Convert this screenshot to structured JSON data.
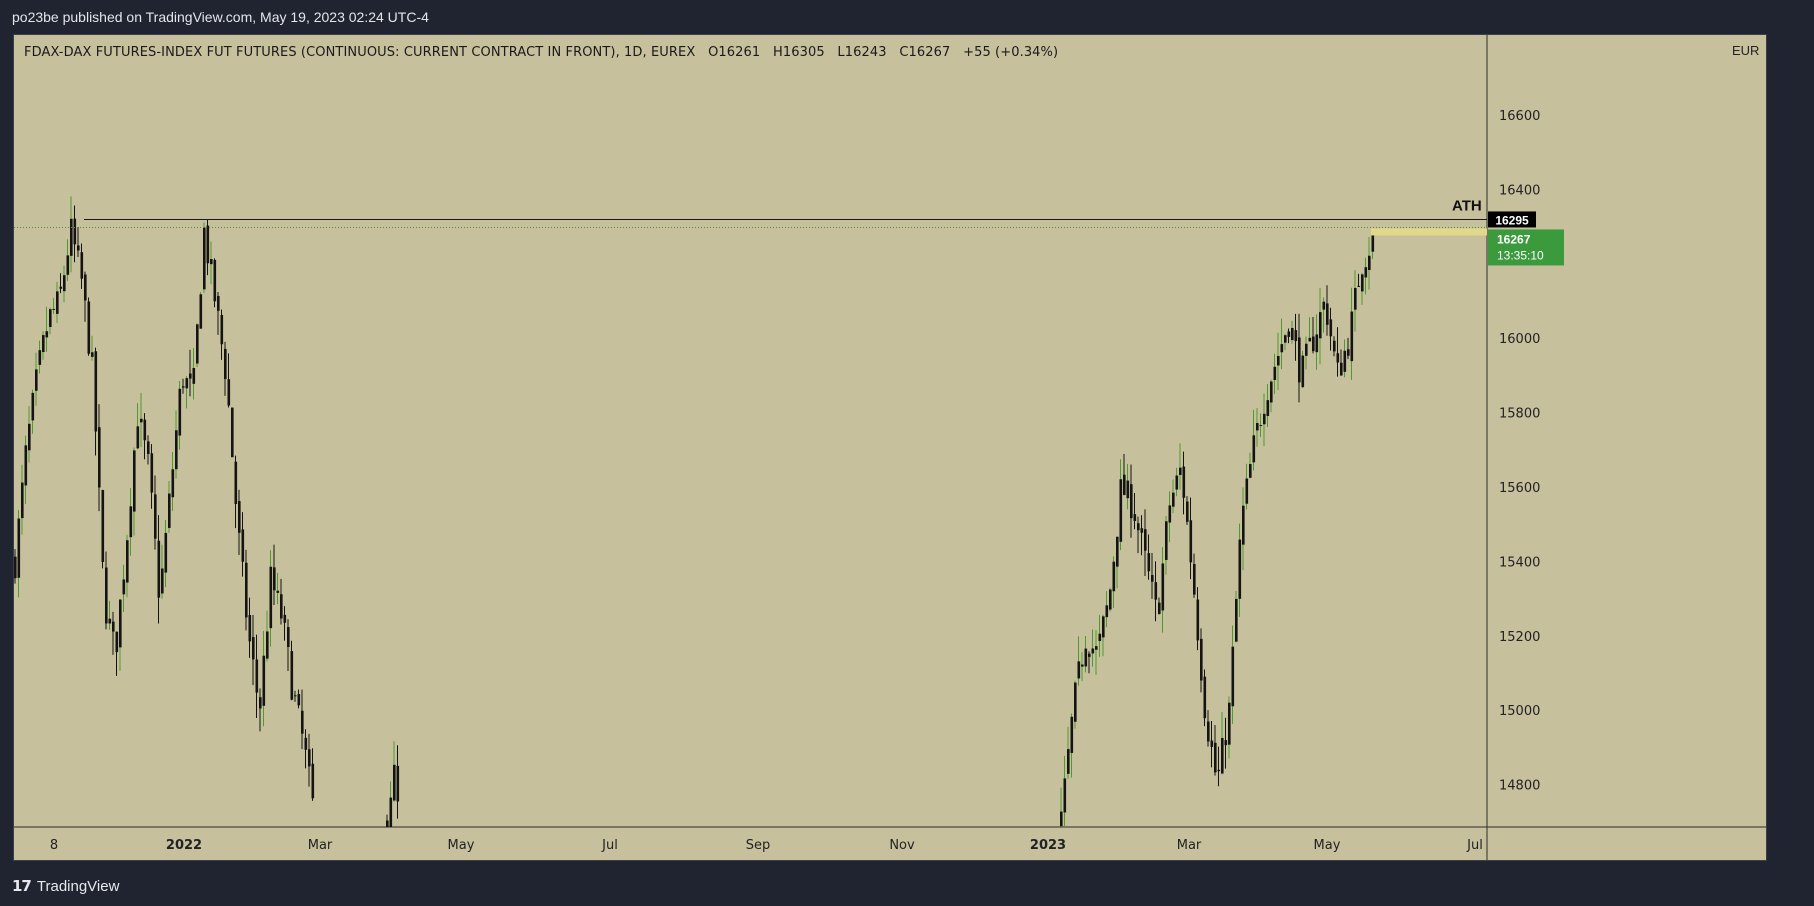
{
  "header": {
    "published_text": "po23be published on TradingView.com, May 19, 2023 02:24 UTC-4"
  },
  "legend": {
    "symbol": "FDAX-DAX FUTURES-INDEX FUT FUTURES (CONTINUOUS: CURRENT CONTRACT IN FRONT), 1D, EUREX",
    "open": "O16261",
    "high": "H16305",
    "low": "L16243",
    "close": "C16267",
    "change": "+55 (+0.34%)"
  },
  "footer": {
    "brand_mark": "17",
    "brand_name": "TradingView"
  },
  "colors": {
    "background": "#c7c09d",
    "candle_body": "#141414",
    "wick_up": "#4f9a2e",
    "badge_green": "#3a9a3c",
    "ath_line": "#1a1a1a"
  },
  "chart_data": {
    "type": "candlestick",
    "currency": "EUR",
    "y_ticks": [
      16600,
      16400,
      16000,
      15800,
      15600,
      15400,
      15200,
      15000,
      14800
    ],
    "x_ticks": [
      "8",
      "2022",
      "Mar",
      "May",
      "Jul",
      "Sep",
      "Nov",
      "2023",
      "Mar",
      "May",
      "Jul"
    ],
    "bold_x_ticks": [
      "2022",
      "2023"
    ],
    "ylim": [
      14700,
      16810
    ],
    "annotation": {
      "label": "ATH",
      "value": 16295
    },
    "last_price": {
      "value": 16267,
      "countdown": "13:35:10"
    },
    "ohlc": {
      "open": 16261,
      "high": 16305,
      "low": 16243,
      "close": 16267
    },
    "segments": [
      {
        "period": "Dec 2021 - Feb 2022",
        "path": [
          15400,
          15700,
          15900,
          16050,
          16100,
          16290,
          16150,
          15900,
          15300,
          15150,
          15450,
          15800,
          15650,
          15300,
          15600,
          15900,
          15850,
          16290,
          16100,
          15900,
          15500,
          15200,
          15000,
          15350,
          15250,
          15050,
          14900,
          14700
        ]
      },
      {
        "period": "Mar 2022",
        "path": [
          14700,
          14850,
          14700
        ]
      },
      {
        "period": "Jan 2023 - May 2023",
        "path": [
          14700,
          15000,
          15200,
          15150,
          15300,
          15600,
          15550,
          15400,
          15250,
          15550,
          15650,
          15350,
          15000,
          14800,
          15000,
          15500,
          15700,
          15850,
          15950,
          16050,
          15900,
          16000,
          16100,
          15900,
          16000,
          16200,
          16267
        ]
      }
    ]
  }
}
